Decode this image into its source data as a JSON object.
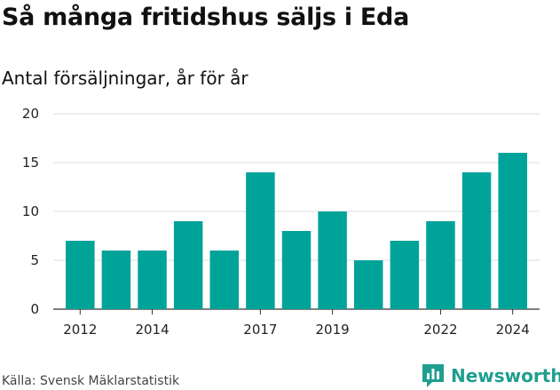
{
  "header": {
    "title": "Så många fritidshus säljs i Eda",
    "subtitle": "Antal försäljningar, år för år"
  },
  "footer": {
    "source": "Källa: Svensk Mäklarstatistik",
    "brand": "Newsworthy",
    "brand_color": "#1f9e8f",
    "brand_icon": "bar-chart-logo-icon"
  },
  "chart_data": {
    "type": "bar",
    "categories": [
      "2012",
      "2013",
      "2014",
      "2015",
      "2016",
      "2017",
      "2018",
      "2019",
      "2020",
      "2021",
      "2022",
      "2023",
      "2024"
    ],
    "values": [
      7,
      6,
      6,
      9,
      6,
      14,
      8,
      10,
      5,
      7,
      9,
      14,
      16
    ],
    "title": "Så många fritidshus säljs i Eda",
    "subtitle": "Antal försäljningar, år för år",
    "xlabel": "",
    "ylabel": "",
    "ylim": [
      0,
      20
    ],
    "yticks": [
      0,
      5,
      10,
      15,
      20
    ],
    "xtick_labels": [
      "2012",
      "2014",
      "2017",
      "2019",
      "2022",
      "2024"
    ],
    "grid": "horizontal",
    "bar_color": "#00a398",
    "legend": "none"
  }
}
